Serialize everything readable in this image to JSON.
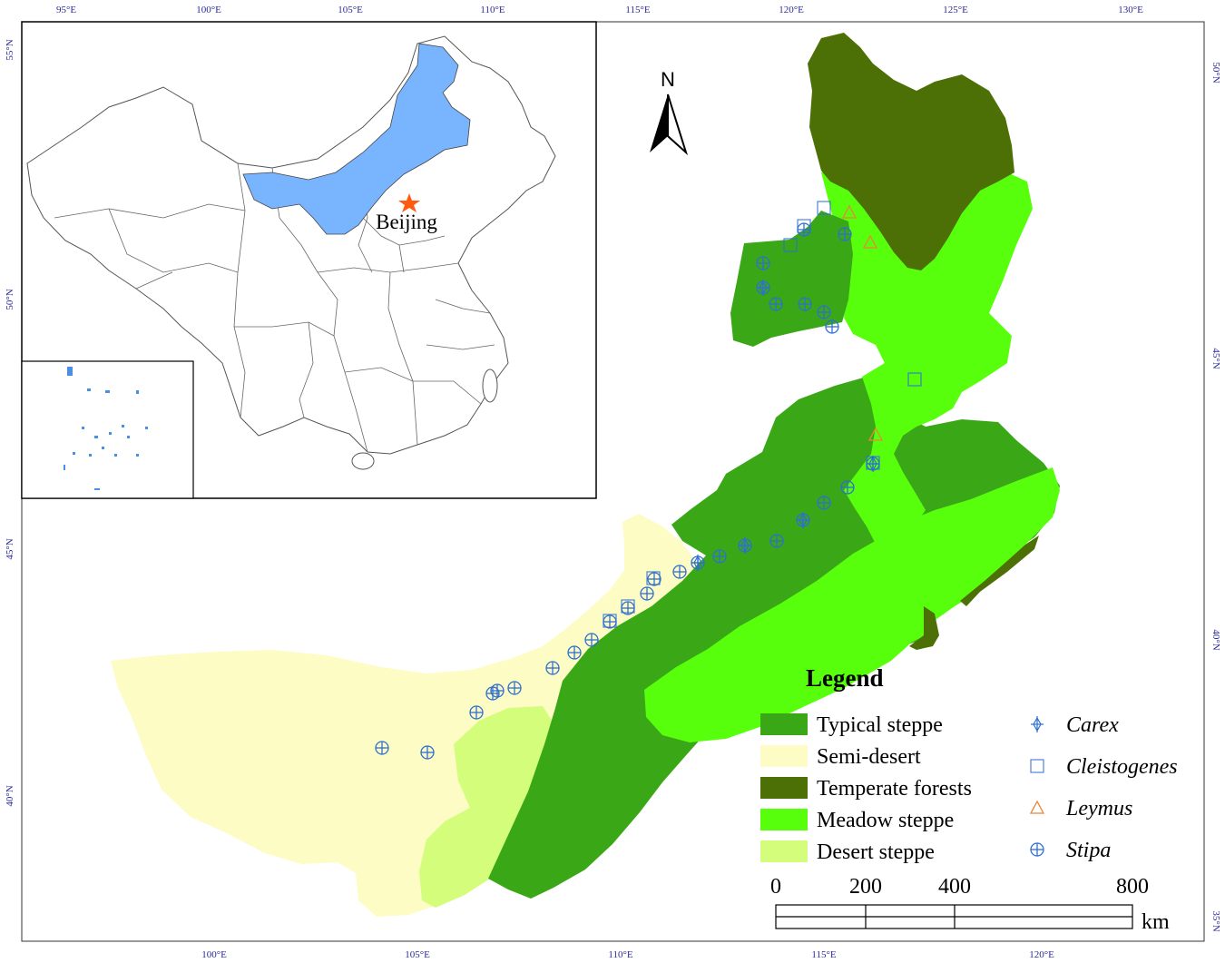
{
  "colors": {
    "typical_steppe": "#3aa816",
    "semi_desert": "#fdfcc4",
    "temperate_forests": "#4c7005",
    "meadow_steppe": "#58ff0c",
    "desert_steppe": "#d3fd7a",
    "highlight_region": "#79b4ff",
    "marker": "#2f6fd0",
    "leymus": "#e8863a",
    "capital_star": "#ff5a10",
    "tick_text": "#2a2a9a"
  },
  "axes": {
    "top_lon": [
      "95°E",
      "100°E",
      "105°E",
      "110°E",
      "115°E",
      "120°E",
      "125°E",
      "130°E"
    ],
    "bottom_lon": [
      "100°E",
      "105°E",
      "110°E",
      "115°E",
      "120°E"
    ],
    "left_lat": [
      "55°N",
      "50°N",
      "45°N",
      "40°N"
    ],
    "right_lat": [
      "50°N",
      "45°N",
      "40°N",
      "35°N"
    ]
  },
  "inset": {
    "capital_label": "Beijing",
    "capital_icon": "star-icon"
  },
  "north_arrow": {
    "label": "N",
    "icon": "north-arrow-icon"
  },
  "legend": {
    "title": "Legend",
    "vegetation": [
      {
        "label": "Typical steppe",
        "color_key": "typical_steppe"
      },
      {
        "label": "Semi-desert",
        "color_key": "semi_desert"
      },
      {
        "label": "Temperate forests",
        "color_key": "temperate_forests"
      },
      {
        "label": "Meadow steppe",
        "color_key": "meadow_steppe"
      },
      {
        "label": "Desert steppe",
        "color_key": "desert_steppe"
      }
    ],
    "genera": [
      {
        "label": "Carex",
        "symbol": "plus-diamond"
      },
      {
        "label": "Cleistogenes",
        "symbol": "square"
      },
      {
        "label": "Leymus",
        "symbol": "triangle"
      },
      {
        "label": "Stipa",
        "symbol": "circle-plus"
      }
    ]
  },
  "scale_bar": {
    "labels": [
      "0",
      "200",
      "400",
      "800"
    ],
    "unit": "km"
  }
}
